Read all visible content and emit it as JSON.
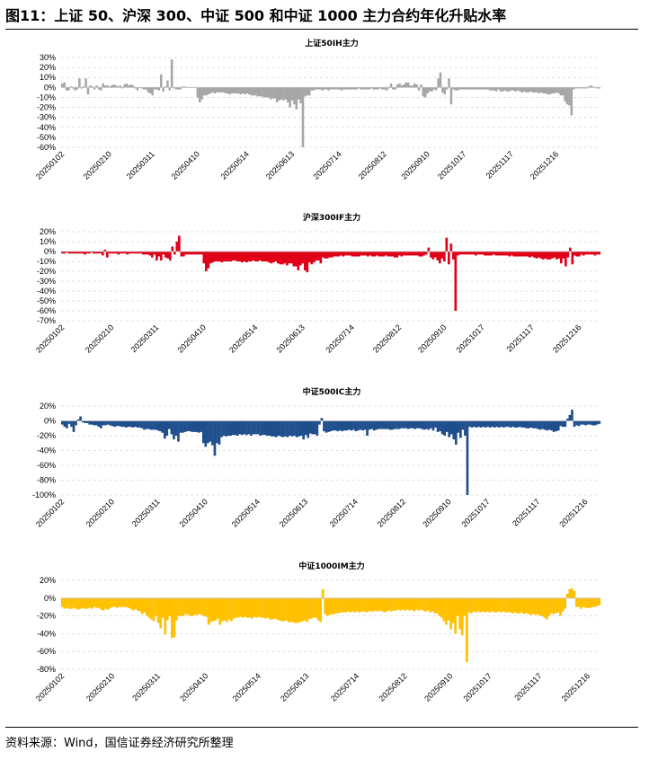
{
  "title": "图11：上证 50、沪深 300、中证 500 和中证 1000 主力合约年化升贴水率",
  "source": "资料来源：Wind，国信证券经济研究所整理",
  "colors": {
    "IH": "#a6a6a6",
    "IF": "#e00018",
    "IC": "#1f4e8c",
    "IM": "#ffc000"
  },
  "chart_data": [
    {
      "type": "bar",
      "title": "上证50IH主力",
      "ylim": [
        -0.6,
        0.3
      ],
      "yticks": [
        0.3,
        0.2,
        0.1,
        0,
        -0.1,
        -0.2,
        -0.3,
        -0.4,
        -0.5,
        -0.6
      ],
      "ytick_labels": [
        "30%",
        "20%",
        "10%",
        "0%",
        "-10%",
        "-20%",
        "-30%",
        "-40%",
        "-50%",
        "-60%"
      ],
      "grid": true,
      "x_tick_labels": [
        "20250102",
        "20250210",
        "20250311",
        "20250410",
        "20250514",
        "20250613",
        "20250714",
        "20250812",
        "20250910",
        "20251017",
        "20251117",
        "20251216"
      ],
      "x_tick_index": [
        0,
        22,
        42,
        63,
        86,
        107,
        129,
        150,
        170,
        187,
        209,
        230
      ],
      "values": [
        0.04,
        0.05,
        -0.03,
        -0.03,
        0.01,
        -0.01,
        -0.03,
        -0.02,
        0.09,
        -0.01,
        0.01,
        0.09,
        -0.07,
        0.02,
        0.01,
        -0.02,
        0.02,
        -0.02,
        -0.03,
        0.04,
        0.02,
        0.02,
        0.01,
        0.02,
        0.03,
        0.02,
        0.01,
        0.02,
        -0.01,
        0.03,
        0.04,
        0.02,
        0.03,
        0.02,
        -0.01,
        -0.03,
        0.0,
        -0.01,
        -0.02,
        -0.02,
        -0.05,
        -0.06,
        -0.08,
        -0.02,
        -0.02,
        -0.03,
        0.13,
        -0.04,
        0.01,
        0.07,
        -0.03,
        0.28,
        -0.01,
        -0.02,
        -0.02,
        -0.02,
        0.01,
        0.01,
        0.0,
        0.0,
        0.0,
        0.0,
        0.0,
        -0.1,
        -0.15,
        -0.12,
        -0.08,
        -0.08,
        -0.07,
        -0.06,
        -0.05,
        -0.06,
        -0.05,
        -0.05,
        -0.05,
        -0.05,
        -0.06,
        -0.06,
        -0.07,
        -0.06,
        -0.06,
        -0.06,
        -0.06,
        -0.07,
        -0.06,
        -0.07,
        -0.06,
        -0.07,
        -0.08,
        -0.08,
        -0.08,
        -0.09,
        -0.09,
        -0.09,
        -0.1,
        -0.1,
        -0.1,
        -0.12,
        -0.11,
        -0.11,
        -0.15,
        -0.13,
        -0.12,
        -0.13,
        -0.12,
        -0.15,
        -0.2,
        -0.13,
        -0.17,
        -0.22,
        -0.12,
        -0.16,
        -0.6,
        -0.09,
        -0.08,
        -0.08,
        -0.03,
        -0.03,
        -0.02,
        -0.02,
        -0.02,
        -0.03,
        -0.02,
        -0.02,
        -0.03,
        -0.02,
        -0.02,
        -0.02,
        -0.02,
        -0.02,
        -0.03,
        -0.02,
        -0.02,
        -0.02,
        -0.02,
        -0.02,
        -0.02,
        -0.02,
        -0.01,
        -0.02,
        -0.02,
        -0.02,
        -0.02,
        -0.02,
        -0.01,
        -0.02,
        -0.02,
        -0.02,
        -0.01,
        -0.02,
        -0.02,
        -0.03,
        -0.01,
        0.04,
        -0.02,
        -0.02,
        0.03,
        0.04,
        0.02,
        0.03,
        0.05,
        0.05,
        0.02,
        0.02,
        0.04,
        0.03,
        -0.03,
        0.03,
        -0.09,
        -0.1,
        -0.06,
        -0.04,
        -0.04,
        -0.02,
        -0.03,
        0.09,
        0.15,
        -0.05,
        -0.07,
        -0.02,
        0.09,
        -0.17,
        -0.02,
        -0.03,
        -0.03,
        -0.02,
        -0.02,
        -0.02,
        -0.02,
        -0.02,
        -0.02,
        -0.02,
        -0.02,
        -0.02,
        -0.02,
        -0.02,
        -0.02,
        -0.02,
        -0.02,
        -0.03,
        -0.03,
        -0.03,
        -0.04,
        -0.02,
        -0.04,
        -0.04,
        -0.03,
        -0.04,
        -0.04,
        -0.03,
        -0.03,
        -0.04,
        -0.03,
        -0.04,
        -0.05,
        -0.04,
        -0.05,
        -0.05,
        -0.04,
        -0.05,
        -0.05,
        -0.05,
        -0.06,
        -0.05,
        -0.06,
        -0.06,
        -0.07,
        -0.07,
        -0.06,
        -0.06,
        -0.05,
        -0.06,
        -0.08,
        -0.08,
        -0.14,
        -0.17,
        -0.18,
        -0.28,
        -0.02,
        -0.01,
        -0.01,
        -0.01,
        -0.01,
        -0.01,
        -0.01,
        0.01,
        0.02,
        0.01,
        0.0,
        -0.01,
        -0.01
      ]
    },
    {
      "type": "bar",
      "title": "沪深300IF主力",
      "ylim": [
        -0.7,
        0.2
      ],
      "yticks": [
        0.2,
        0.1,
        0,
        -0.1,
        -0.2,
        -0.3,
        -0.4,
        -0.5,
        -0.6,
        -0.7
      ],
      "ytick_labels": [
        "20%",
        "10%",
        "0%",
        "-10%",
        "-20%",
        "-30%",
        "-40%",
        "-50%",
        "-60%",
        "-70%"
      ],
      "grid": true,
      "x_tick_labels": [
        "20250102",
        "20250210",
        "20250311",
        "20250410",
        "20250514",
        "20250613",
        "20250714",
        "20250812",
        "20250910",
        "20251017",
        "20251117",
        "20251216"
      ],
      "x_tick_index": [
        0,
        22,
        42,
        63,
        86,
        107,
        129,
        150,
        170,
        187,
        209,
        230
      ],
      "values": [
        -0.02,
        -0.02,
        -0.01,
        -0.02,
        -0.02,
        -0.02,
        -0.02,
        -0.02,
        -0.02,
        -0.02,
        -0.03,
        -0.02,
        -0.02,
        -0.01,
        -0.02,
        -0.02,
        -0.02,
        -0.02,
        -0.04,
        0.02,
        -0.06,
        -0.02,
        -0.02,
        -0.02,
        -0.02,
        -0.03,
        -0.02,
        -0.02,
        -0.02,
        -0.03,
        -0.02,
        -0.02,
        -0.02,
        -0.02,
        -0.02,
        -0.02,
        -0.03,
        -0.03,
        -0.03,
        -0.04,
        -0.06,
        -0.03,
        -0.09,
        -0.05,
        -0.09,
        -0.03,
        -0.06,
        -0.07,
        -0.09,
        0.05,
        -0.03,
        0.1,
        0.16,
        -0.05,
        -0.05,
        -0.03,
        -0.03,
        -0.03,
        -0.03,
        -0.03,
        -0.03,
        -0.03,
        -0.03,
        -0.12,
        -0.2,
        -0.17,
        -0.12,
        -0.11,
        -0.1,
        -0.1,
        -0.1,
        -0.11,
        -0.1,
        -0.1,
        -0.1,
        -0.1,
        -0.09,
        -0.09,
        -0.1,
        -0.1,
        -0.11,
        -0.1,
        -0.11,
        -0.1,
        -0.1,
        -0.09,
        -0.1,
        -0.1,
        -0.09,
        -0.1,
        -0.1,
        -0.1,
        -0.11,
        -0.12,
        -0.11,
        -0.1,
        -0.12,
        -0.13,
        -0.13,
        -0.12,
        -0.14,
        -0.12,
        -0.12,
        -0.15,
        -0.15,
        -0.19,
        -0.14,
        -0.12,
        -0.19,
        -0.21,
        -0.11,
        -0.13,
        -0.11,
        -0.09,
        -0.09,
        -0.12,
        -0.06,
        -0.07,
        -0.07,
        -0.06,
        -0.06,
        -0.05,
        -0.05,
        -0.05,
        -0.04,
        -0.05,
        -0.04,
        -0.04,
        -0.04,
        -0.05,
        -0.05,
        -0.05,
        -0.05,
        -0.04,
        -0.04,
        -0.04,
        -0.05,
        -0.04,
        -0.05,
        -0.05,
        -0.04,
        -0.05,
        -0.05,
        -0.05,
        -0.04,
        -0.05,
        -0.05,
        -0.05,
        -0.06,
        -0.06,
        -0.04,
        -0.05,
        -0.04,
        -0.04,
        -0.04,
        -0.04,
        -0.04,
        -0.04,
        -0.04,
        -0.05,
        -0.05,
        -0.04,
        -0.03,
        0.04,
        -0.06,
        -0.08,
        -0.06,
        -0.09,
        -0.12,
        -0.07,
        -0.1,
        0.14,
        -0.13,
        0.08,
        -0.08,
        -0.6,
        -0.04,
        -0.03,
        -0.03,
        -0.03,
        -0.03,
        -0.03,
        -0.03,
        -0.03,
        -0.04,
        -0.03,
        -0.03,
        -0.03,
        -0.04,
        -0.04,
        -0.04,
        -0.04,
        -0.03,
        -0.04,
        -0.04,
        -0.04,
        -0.04,
        -0.04,
        -0.04,
        -0.05,
        -0.04,
        -0.05,
        -0.05,
        -0.05,
        -0.05,
        -0.05,
        -0.05,
        -0.05,
        -0.06,
        -0.05,
        -0.06,
        -0.07,
        -0.06,
        -0.07,
        -0.08,
        -0.07,
        -0.08,
        -0.08,
        -0.07,
        -0.06,
        -0.08,
        -0.07,
        -0.12,
        -0.07,
        -0.15,
        -0.06,
        0.04,
        -0.13,
        -0.04,
        -0.05,
        -0.05,
        -0.03,
        -0.04,
        -0.03,
        -0.03,
        -0.03,
        -0.03,
        -0.04,
        -0.03,
        -0.03
      ]
    },
    {
      "type": "bar",
      "title": "中证500IC主力",
      "ylim": [
        -1.0,
        0.2
      ],
      "yticks": [
        0.2,
        0,
        -0.2,
        -0.4,
        -0.6,
        -0.8,
        -1.0
      ],
      "ytick_labels": [
        "20%",
        "0%",
        "-20%",
        "-40%",
        "-60%",
        "-80%",
        "-100%"
      ],
      "grid": true,
      "x_tick_labels": [
        "20250102",
        "20250210",
        "20250311",
        "20250410",
        "20250514",
        "20250613",
        "20250714",
        "20250812",
        "20250910",
        "20251017",
        "20251117",
        "20251216"
      ],
      "x_tick_index": [
        0,
        22,
        42,
        63,
        86,
        107,
        129,
        150,
        170,
        187,
        209,
        230
      ],
      "values": [
        -0.05,
        -0.08,
        -0.1,
        -0.04,
        -0.08,
        -0.15,
        -0.06,
        0.02,
        0.06,
        -0.02,
        -0.03,
        -0.03,
        -0.05,
        -0.05,
        -0.06,
        -0.06,
        -0.08,
        -0.1,
        -0.06,
        -0.06,
        -0.05,
        -0.06,
        -0.07,
        -0.08,
        -0.07,
        -0.07,
        -0.08,
        -0.08,
        -0.09,
        -0.08,
        -0.08,
        -0.09,
        -0.08,
        -0.09,
        -0.09,
        -0.1,
        -0.12,
        -0.11,
        -0.11,
        -0.12,
        -0.12,
        -0.12,
        -0.13,
        -0.14,
        -0.16,
        -0.24,
        -0.2,
        -0.11,
        -0.18,
        -0.25,
        -0.2,
        -0.28,
        -0.16,
        -0.16,
        -0.15,
        -0.14,
        -0.14,
        -0.15,
        -0.15,
        -0.15,
        -0.16,
        -0.15,
        -0.3,
        -0.35,
        -0.3,
        -0.28,
        -0.33,
        -0.47,
        -0.3,
        -0.32,
        -0.22,
        -0.2,
        -0.21,
        -0.2,
        -0.2,
        -0.19,
        -0.19,
        -0.2,
        -0.18,
        -0.19,
        -0.18,
        -0.19,
        -0.18,
        -0.2,
        -0.18,
        -0.18,
        -0.18,
        -0.2,
        -0.19,
        -0.19,
        -0.2,
        -0.2,
        -0.21,
        -0.21,
        -0.22,
        -0.2,
        -0.21,
        -0.22,
        -0.21,
        -0.22,
        -0.2,
        -0.21,
        -0.2,
        -0.22,
        -0.21,
        -0.2,
        -0.25,
        -0.19,
        -0.23,
        -0.17,
        -0.18,
        -0.18,
        -0.2,
        -0.05,
        0.04,
        -0.14,
        -0.16,
        -0.15,
        -0.14,
        -0.13,
        -0.13,
        -0.14,
        -0.13,
        -0.14,
        -0.13,
        -0.13,
        -0.12,
        -0.13,
        -0.12,
        -0.14,
        -0.13,
        -0.12,
        -0.13,
        -0.12,
        -0.2,
        -0.12,
        -0.11,
        -0.13,
        -0.12,
        -0.11,
        -0.11,
        -0.11,
        -0.11,
        -0.11,
        -0.12,
        -0.12,
        -0.11,
        -0.11,
        -0.11,
        -0.1,
        -0.1,
        -0.1,
        -0.11,
        -0.1,
        -0.1,
        -0.11,
        -0.1,
        -0.1,
        -0.11,
        -0.12,
        -0.11,
        -0.12,
        -0.1,
        -0.13,
        -0.09,
        -0.15,
        -0.14,
        -0.18,
        -0.2,
        -0.15,
        -0.22,
        -0.18,
        -0.25,
        -0.32,
        -0.16,
        -0.23,
        -0.12,
        -0.2,
        -1.0,
        -0.08,
        -0.09,
        -0.08,
        -0.09,
        -0.08,
        -0.09,
        -0.08,
        -0.09,
        -0.08,
        -0.09,
        -0.08,
        -0.09,
        -0.08,
        -0.09,
        -0.08,
        -0.09,
        -0.08,
        -0.08,
        -0.09,
        -0.08,
        -0.09,
        -0.09,
        -0.08,
        -0.09,
        -0.09,
        -0.1,
        -0.1,
        -0.09,
        -0.1,
        -0.1,
        -0.11,
        -0.12,
        -0.11,
        -0.12,
        -0.13,
        -0.12,
        -0.13,
        -0.15,
        -0.14,
        -0.13,
        -0.07,
        -0.08,
        -0.08,
        0.03,
        0.08,
        0.15,
        -0.08,
        -0.06,
        -0.07,
        -0.05,
        -0.05,
        -0.06,
        -0.05,
        -0.05,
        -0.06,
        -0.06,
        -0.05,
        -0.04
      ]
    },
    {
      "type": "bar",
      "title": "中证1000IM主力",
      "ylim": [
        -0.8,
        0.2
      ],
      "yticks": [
        0.2,
        0,
        -0.2,
        -0.4,
        -0.6,
        -0.8
      ],
      "ytick_labels": [
        "20%",
        "0%",
        "-20%",
        "-40%",
        "-60%",
        "-80%"
      ],
      "grid": true,
      "x_tick_labels": [
        "20250102",
        "20250210",
        "20250311",
        "20250410",
        "20250514",
        "20250613",
        "20250714",
        "20250812",
        "20250910",
        "20251017",
        "20251117",
        "20251216"
      ],
      "x_tick_index": [
        0,
        22,
        42,
        63,
        86,
        107,
        129,
        150,
        170,
        187,
        209,
        230
      ],
      "values": [
        -0.1,
        -0.12,
        -0.11,
        -0.12,
        -0.12,
        -0.11,
        -0.12,
        -0.13,
        -0.12,
        -0.11,
        -0.12,
        -0.12,
        -0.11,
        -0.12,
        -0.1,
        -0.11,
        -0.11,
        -0.13,
        -0.14,
        -0.12,
        -0.13,
        -0.11,
        -0.1,
        -0.1,
        -0.11,
        -0.1,
        -0.1,
        -0.1,
        -0.1,
        -0.11,
        -0.12,
        -0.14,
        -0.12,
        -0.14,
        -0.15,
        -0.18,
        -0.16,
        -0.2,
        -0.22,
        -0.24,
        -0.26,
        -0.2,
        -0.28,
        -0.34,
        -0.22,
        -0.41,
        -0.25,
        -0.2,
        -0.45,
        -0.44,
        -0.25,
        -0.2,
        -0.2,
        -0.2,
        -0.18,
        -0.19,
        -0.2,
        -0.2,
        -0.19,
        -0.19,
        -0.18,
        -0.19,
        -0.2,
        -0.21,
        -0.3,
        -0.27,
        -0.26,
        -0.25,
        -0.23,
        -0.3,
        -0.26,
        -0.25,
        -0.27,
        -0.24,
        -0.26,
        -0.23,
        -0.22,
        -0.22,
        -0.21,
        -0.22,
        -0.21,
        -0.22,
        -0.22,
        -0.23,
        -0.21,
        -0.22,
        -0.21,
        -0.22,
        -0.22,
        -0.23,
        -0.22,
        -0.24,
        -0.24,
        -0.23,
        -0.24,
        -0.25,
        -0.26,
        -0.26,
        -0.25,
        -0.27,
        -0.27,
        -0.27,
        -0.28,
        -0.28,
        -0.27,
        -0.26,
        -0.25,
        -0.27,
        -0.24,
        -0.23,
        -0.22,
        -0.22,
        -0.25,
        -0.27,
        0.1,
        -0.18,
        -0.2,
        -0.19,
        -0.18,
        -0.18,
        -0.17,
        -0.17,
        -0.16,
        -0.16,
        -0.16,
        -0.15,
        -0.16,
        -0.15,
        -0.16,
        -0.15,
        -0.16,
        -0.15,
        -0.15,
        -0.16,
        -0.15,
        -0.15,
        -0.15,
        -0.14,
        -0.15,
        -0.14,
        -0.15,
        -0.16,
        -0.15,
        -0.14,
        -0.15,
        -0.14,
        -0.14,
        -0.13,
        -0.14,
        -0.13,
        -0.14,
        -0.13,
        -0.14,
        -0.13,
        -0.15,
        -0.13,
        -0.14,
        -0.13,
        -0.14,
        -0.15,
        -0.14,
        -0.16,
        -0.15,
        -0.17,
        -0.17,
        -0.2,
        -0.22,
        -0.26,
        -0.3,
        -0.25,
        -0.35,
        -0.28,
        -0.4,
        -0.2,
        -0.35,
        -0.42,
        -0.2,
        -0.72,
        -0.16,
        -0.17,
        -0.15,
        -0.16,
        -0.15,
        -0.16,
        -0.15,
        -0.16,
        -0.15,
        -0.16,
        -0.15,
        -0.16,
        -0.16,
        -0.15,
        -0.16,
        -0.15,
        -0.16,
        -0.16,
        -0.16,
        -0.17,
        -0.16,
        -0.17,
        -0.17,
        -0.16,
        -0.18,
        -0.17,
        -0.18,
        -0.19,
        -0.18,
        -0.19,
        -0.18,
        -0.2,
        -0.2,
        -0.22,
        -0.24,
        -0.2,
        -0.17,
        -0.18,
        -0.17,
        -0.16,
        -0.2,
        -0.15,
        -0.12,
        0.05,
        0.1,
        0.11,
        0.08,
        -0.1,
        -0.1,
        -0.12,
        -0.1,
        -0.11,
        -0.11,
        -0.11,
        -0.1,
        -0.1,
        -0.09,
        -0.08
      ]
    }
  ]
}
